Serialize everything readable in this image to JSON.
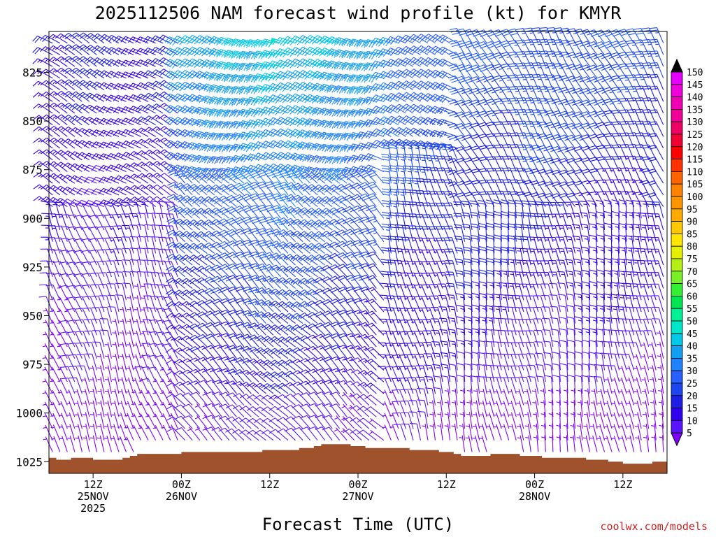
{
  "chart_data": {
    "type": "wind-barb-time-height",
    "title": "2025112506 NAM forecast wind profile (kt) for KMYR",
    "xlabel": "Forecast Time (UTC)",
    "ylabel": "",
    "credit": "coolwx.com/models",
    "y_axis": {
      "units": "hPa",
      "inverted": true,
      "ylim": [
        804,
        1031
      ],
      "ticks": [
        {
          "value": 825,
          "label": "825"
        },
        {
          "value": 850,
          "label": "850"
        },
        {
          "value": 875,
          "label": "875"
        },
        {
          "value": 900,
          "label": "900"
        },
        {
          "value": 925,
          "label": "925"
        },
        {
          "value": 950,
          "label": "950"
        },
        {
          "value": 975,
          "label": "975"
        },
        {
          "value": 1000,
          "label": "1000"
        },
        {
          "value": 1025,
          "label": "1025"
        }
      ]
    },
    "x_axis": {
      "units": "forecast hour",
      "xlim": [
        0,
        84
      ],
      "ticks": [
        {
          "value": 6,
          "line1": "12Z",
          "line2": "25NOV",
          "line3": "2025"
        },
        {
          "value": 18,
          "line1": "00Z",
          "line2": "26NOV",
          "line3": ""
        },
        {
          "value": 30,
          "line1": "12Z",
          "line2": "",
          "line3": ""
        },
        {
          "value": 42,
          "line1": "00Z",
          "line2": "27NOV",
          "line3": ""
        },
        {
          "value": 54,
          "line1": "12Z",
          "line2": "",
          "line3": ""
        },
        {
          "value": 66,
          "line1": "00Z",
          "line2": "28NOV",
          "line3": ""
        },
        {
          "value": 78,
          "line1": "12Z",
          "line2": "",
          "line3": ""
        }
      ]
    },
    "colorbar": {
      "levels": [
        "5",
        "10",
        "15",
        "20",
        "25",
        "30",
        "35",
        "40",
        "45",
        "50",
        "55",
        "60",
        "65",
        "70",
        "75",
        "80",
        "85",
        "90",
        "95",
        "100",
        "105",
        "110",
        "115",
        "120",
        "125",
        "130",
        "135",
        "140",
        "145",
        "150"
      ],
      "colors": [
        "#7f00ff",
        "#5a14ff",
        "#3200f0",
        "#1e1ee6",
        "#1e46f0",
        "#2860ff",
        "#1e82ff",
        "#14a0f0",
        "#00c8e6",
        "#00e6c8",
        "#00f096",
        "#00e650",
        "#32f032",
        "#78f028",
        "#b4f014",
        "#e6f000",
        "#ffe600",
        "#ffc800",
        "#ffaa00",
        "#ff9600",
        "#ff8200",
        "#ff6400",
        "#ff3200",
        "#ff0000",
        "#f00032",
        "#f00064",
        "#f00096",
        "#f000b4",
        "#f000dc",
        "#e600ff"
      ],
      "cap_top": "#000000"
    },
    "surface": {
      "color": "#a0522d",
      "hours": [
        0,
        1,
        3,
        4,
        6,
        7,
        8,
        9,
        10,
        10.5,
        11,
        12,
        13,
        14,
        15,
        16,
        17,
        18,
        19,
        20,
        21,
        22,
        23,
        24,
        25,
        26,
        27,
        28,
        29,
        30,
        31,
        32,
        33,
        34,
        35,
        36,
        37,
        38,
        39,
        40,
        41,
        42,
        43,
        44,
        45,
        46,
        47,
        48,
        49,
        50,
        51,
        52,
        53,
        54,
        55,
        56,
        57,
        58,
        59,
        60,
        61,
        62,
        63,
        64,
        65,
        66,
        67,
        68,
        69,
        70,
        71,
        72,
        73,
        74,
        75,
        76,
        77,
        78,
        79,
        80,
        81,
        82,
        83,
        84
      ],
      "pressure": [
        1023,
        1024,
        1023,
        1023,
        1024,
        1024,
        1024,
        1024,
        1023,
        1023,
        1022,
        1021,
        1021,
        1021,
        1021,
        1021,
        1021,
        1020,
        1020,
        1020,
        1020,
        1020,
        1020,
        1020,
        1020,
        1020,
        1020,
        1020,
        1019,
        1019,
        1019,
        1019,
        1019,
        1018,
        1018,
        1017,
        1016,
        1016,
        1016,
        1016,
        1017,
        1017,
        1018,
        1018,
        1018,
        1018,
        1018,
        1018,
        1019,
        1019,
        1019,
        1019,
        1020,
        1020,
        1021,
        1022,
        1022,
        1022,
        1022,
        1021,
        1021,
        1021,
        1021,
        1022,
        1022,
        1022,
        1023,
        1023,
        1023,
        1023,
        1023,
        1023,
        1024,
        1024,
        1024,
        1025,
        1025,
        1026,
        1026,
        1026,
        1026,
        1025,
        1025,
        1025
      ]
    },
    "wind_field": {
      "hours_start": 0,
      "hours_step": 1,
      "hours_count": 84,
      "p_top": 810,
      "p_step": 6,
      "p_count": 37
    }
  }
}
